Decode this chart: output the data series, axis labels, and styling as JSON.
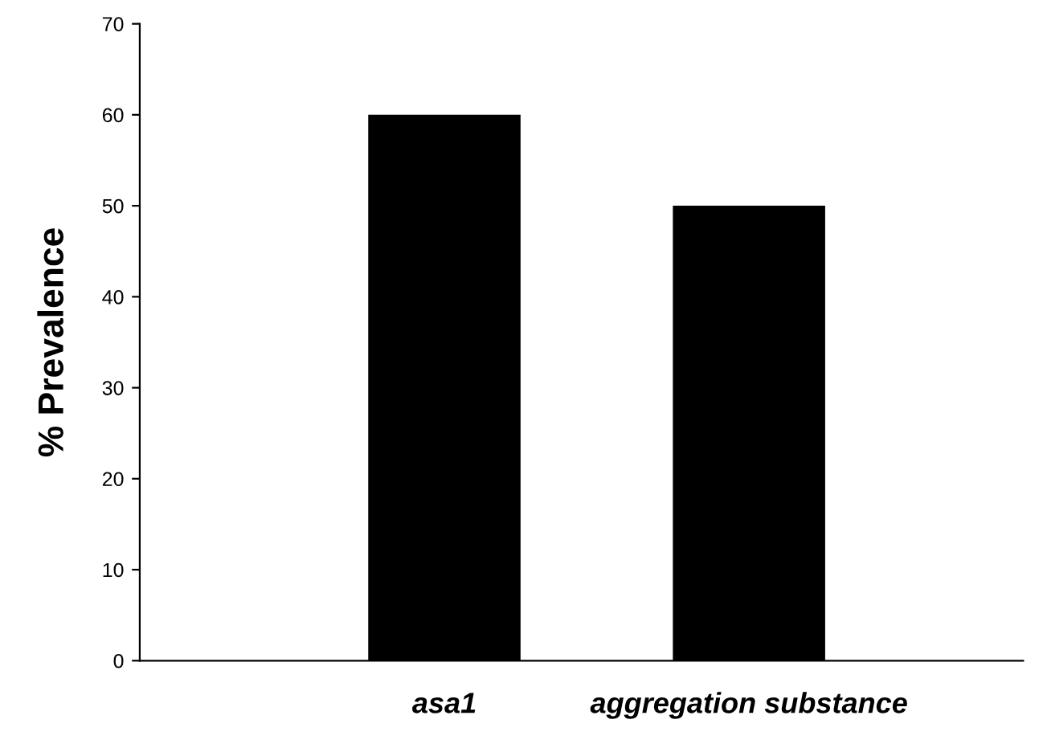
{
  "chart_data": {
    "type": "bar",
    "ylabel": "% Prevalence",
    "categories": [
      "asa1",
      "aggregation substance"
    ],
    "values": [
      60,
      50
    ],
    "color": "#000000",
    "ylim": [
      0,
      70
    ],
    "yticks": [
      0,
      10,
      20,
      30,
      40,
      50,
      60,
      70
    ],
    "grid": false
  }
}
